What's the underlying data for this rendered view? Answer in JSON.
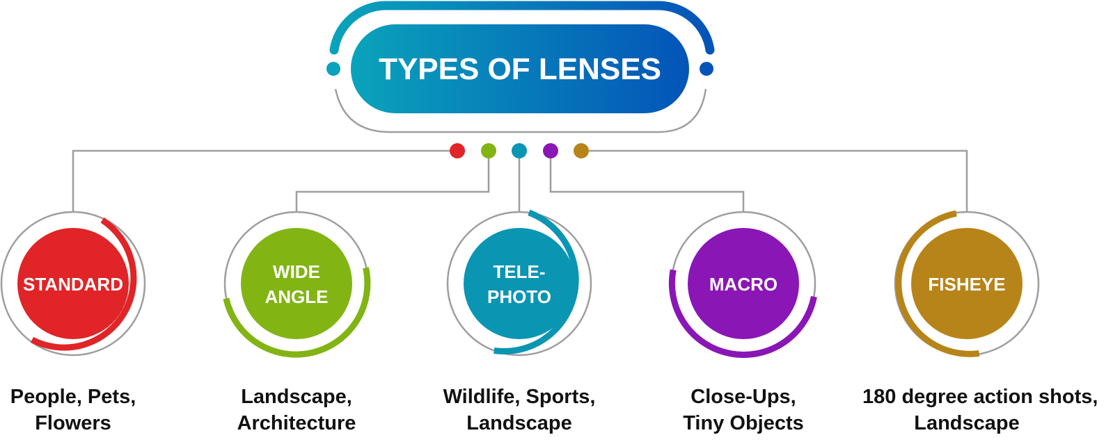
{
  "title": "TYPES OF LENSES",
  "colors": {
    "gradient_start": "#0aa3bb",
    "gradient_end": "#0454b8",
    "connector_gray": "#9e9e9e"
  },
  "lenses": [
    {
      "label_lines": [
        "STANDARD"
      ],
      "color": "#e02427",
      "desc_lines": [
        "People, Pets,",
        "Flowers"
      ]
    },
    {
      "label_lines": [
        "WIDE",
        "ANGLE"
      ],
      "color": "#82b414",
      "desc_lines": [
        "Landscape,",
        "Architecture"
      ]
    },
    {
      "label_lines": [
        "TELE-",
        "PHOTO"
      ],
      "color": "#0a95b3",
      "desc_lines": [
        "Wildlife, Sports,",
        "Landscape"
      ]
    },
    {
      "label_lines": [
        "MACRO"
      ],
      "color": "#8a16b5",
      "desc_lines": [
        "Close-Ups,",
        "Tiny Objects"
      ]
    },
    {
      "label_lines": [
        "FISHEYE"
      ],
      "color": "#b78419",
      "desc_lines": [
        "180 degree action shots,",
        "Landscape"
      ]
    }
  ]
}
